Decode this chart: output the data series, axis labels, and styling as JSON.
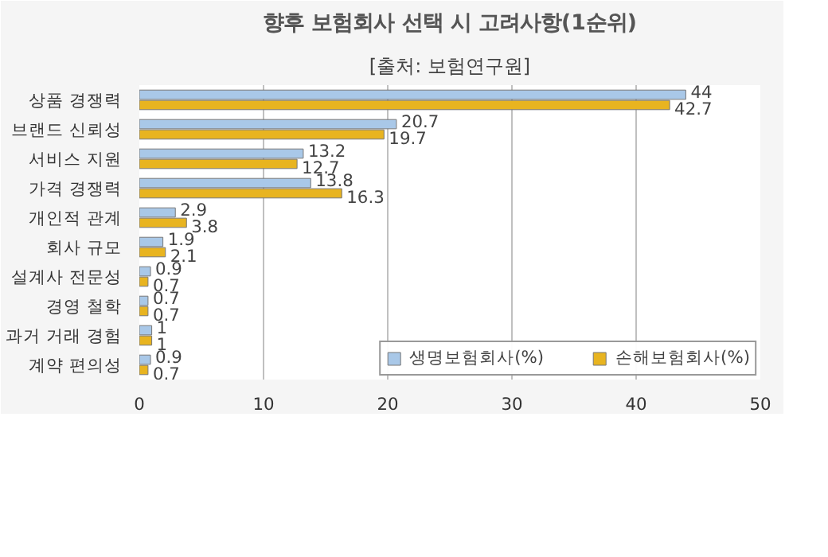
{
  "chart_data": {
    "type": "bar",
    "orientation": "horizontal",
    "title": "향후 보험회사 선택 시 고려사항(1순위)",
    "subtitle": "[출처: 보험연구원]",
    "categories": [
      "상품 경쟁력",
      "브랜드 신뢰성",
      "서비스 지원",
      "가격 경쟁력",
      "개인적 관계",
      "회사 규모",
      "설계사 전문성",
      "경영 철학",
      "과거 거래 경험",
      "계약 편의성"
    ],
    "series": [
      {
        "name": "생명보험회사(%)",
        "color": "#a9c8e8",
        "values": [
          44,
          20.7,
          13.2,
          13.8,
          2.9,
          1.9,
          0.9,
          0.7,
          1,
          0.9
        ]
      },
      {
        "name": "손해보험회사(%)",
        "color": "#e8b420",
        "values": [
          42.7,
          19.7,
          12.7,
          16.3,
          3.8,
          2.1,
          0.7,
          0.7,
          1,
          0.7
        ]
      }
    ],
    "xlim": [
      0,
      50
    ],
    "xticks": [
      0,
      10,
      20,
      30,
      40,
      50
    ],
    "grid": "x",
    "legend": "bottom",
    "data_labels": true
  }
}
